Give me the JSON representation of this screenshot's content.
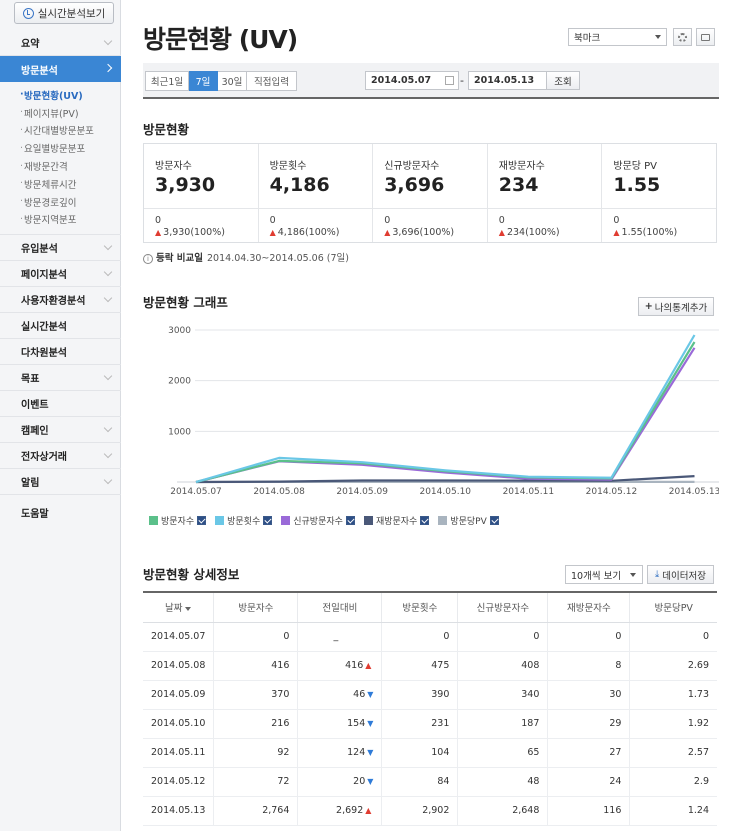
{
  "sidebar": {
    "realtime_button": "실시간분석보기",
    "menu": [
      {
        "label": "요약",
        "chevron": true
      },
      {
        "label": "방문분석",
        "active": true
      }
    ],
    "sub": [
      "방문현황(UV)",
      "페이지뷰(PV)",
      "시간대별방문분포",
      "요일별방문분포",
      "재방문간격",
      "방문체류시간",
      "방문경로깊이",
      "방문지역분포"
    ],
    "menu2": [
      {
        "label": "유입분석",
        "chevron": true
      },
      {
        "label": "페이지분석",
        "chevron": true
      },
      {
        "label": "사용자환경분석",
        "chevron": true
      },
      {
        "label": "실시간분석",
        "chevron": false
      },
      {
        "label": "다차원분석",
        "chevron": false
      },
      {
        "label": "목표",
        "chevron": true
      },
      {
        "label": "이벤트",
        "chevron": false
      },
      {
        "label": "캠페인",
        "chevron": true
      },
      {
        "label": "전자상거래",
        "chevron": true
      },
      {
        "label": "알림",
        "chevron": true
      },
      {
        "label": "도움말",
        "chevron": false
      }
    ]
  },
  "header": {
    "title": "방문현황 (UV)",
    "bookmark_select": "북마크"
  },
  "filter": {
    "periods": [
      "최근1일",
      "7일",
      "30일",
      "직접입력"
    ],
    "selected_period": "7일",
    "start_date": "2014.05.07",
    "end_date": "2014.05.13",
    "separator": "-",
    "query_button": "조회"
  },
  "summary": {
    "title": "방문현황",
    "kpis": [
      {
        "label": "방문자수",
        "value": "3,930",
        "base": "0",
        "delta": "3,930(100%)"
      },
      {
        "label": "방문횟수",
        "value": "4,186",
        "base": "0",
        "delta": "4,186(100%)"
      },
      {
        "label": "신규방문자수",
        "value": "3,696",
        "base": "0",
        "delta": "3,696(100%)"
      },
      {
        "label": "재방문자수",
        "value": "234",
        "base": "0",
        "delta": "234(100%)"
      },
      {
        "label": "방문당 PV",
        "value": "1.55",
        "base": "0",
        "delta": "1.55(100%)"
      }
    ],
    "compare_label": "등락 비교일",
    "compare_range": "2014.04.30~2014.05.06 (7일)"
  },
  "graph": {
    "title": "방문현황 그래프",
    "add_button": "나의통계추가"
  },
  "chart_data": {
    "type": "line",
    "x": [
      "2014.05.07",
      "2014.05.08",
      "2014.05.09",
      "2014.05.10",
      "2014.05.11",
      "2014.05.12",
      "2014.05.13"
    ],
    "x_tick_labels": [
      "2014.05.07",
      "2014.05.08",
      "2014.05.09",
      "2014.05.10",
      "2014.05.11",
      "2014.05.12",
      "2014.05.13"
    ],
    "ylim": [
      0,
      3000
    ],
    "yticks": [
      "1000",
      "2000",
      "3000"
    ],
    "grid": true,
    "legend_position": "bottom-left",
    "series": [
      {
        "name": "방문자수",
        "color": "#5bc08a",
        "values": [
          0,
          416,
          370,
          216,
          92,
          72,
          2764
        ]
      },
      {
        "name": "방문횟수",
        "color": "#6ac7e6",
        "values": [
          0,
          475,
          390,
          231,
          104,
          84,
          2902
        ]
      },
      {
        "name": "신규방문자수",
        "color": "#9a6ad8",
        "values": [
          0,
          408,
          340,
          187,
          65,
          48,
          2648
        ]
      },
      {
        "name": "재방문자수",
        "color": "#4a5878",
        "values": [
          0,
          8,
          30,
          29,
          27,
          24,
          116
        ]
      },
      {
        "name": "방문당PV",
        "color": "#a9b4bf",
        "values": [
          0,
          2.69,
          1.73,
          1.92,
          2.57,
          2.9,
          1.24
        ]
      }
    ]
  },
  "detail": {
    "title": "방문현황 상세정보",
    "rows_select": "10개씩 보기",
    "save_button": "데이터저장",
    "columns": [
      "날짜",
      "방문자수",
      "전일대비",
      "방문횟수",
      "신규방문자수",
      "재방문자수",
      "방문당PV"
    ],
    "rows": [
      {
        "date": "2014.05.07",
        "uv": "0",
        "diff": "_",
        "dir": "",
        "visits": "0",
        "new": "0",
        "ret": "0",
        "pv": "0"
      },
      {
        "date": "2014.05.08",
        "uv": "416",
        "diff": "416",
        "dir": "up",
        "visits": "475",
        "new": "408",
        "ret": "8",
        "pv": "2.69"
      },
      {
        "date": "2014.05.09",
        "uv": "370",
        "diff": "46",
        "dir": "down",
        "visits": "390",
        "new": "340",
        "ret": "30",
        "pv": "1.73"
      },
      {
        "date": "2014.05.10",
        "uv": "216",
        "diff": "154",
        "dir": "down",
        "visits": "231",
        "new": "187",
        "ret": "29",
        "pv": "1.92"
      },
      {
        "date": "2014.05.11",
        "uv": "92",
        "diff": "124",
        "dir": "down",
        "visits": "104",
        "new": "65",
        "ret": "27",
        "pv": "2.57"
      },
      {
        "date": "2014.05.12",
        "uv": "72",
        "diff": "20",
        "dir": "down",
        "visits": "84",
        "new": "48",
        "ret": "24",
        "pv": "2.9"
      },
      {
        "date": "2014.05.13",
        "uv": "2,764",
        "diff": "2,692",
        "dir": "up",
        "visits": "2,902",
        "new": "2,648",
        "ret": "116",
        "pv": "1.24"
      }
    ]
  }
}
